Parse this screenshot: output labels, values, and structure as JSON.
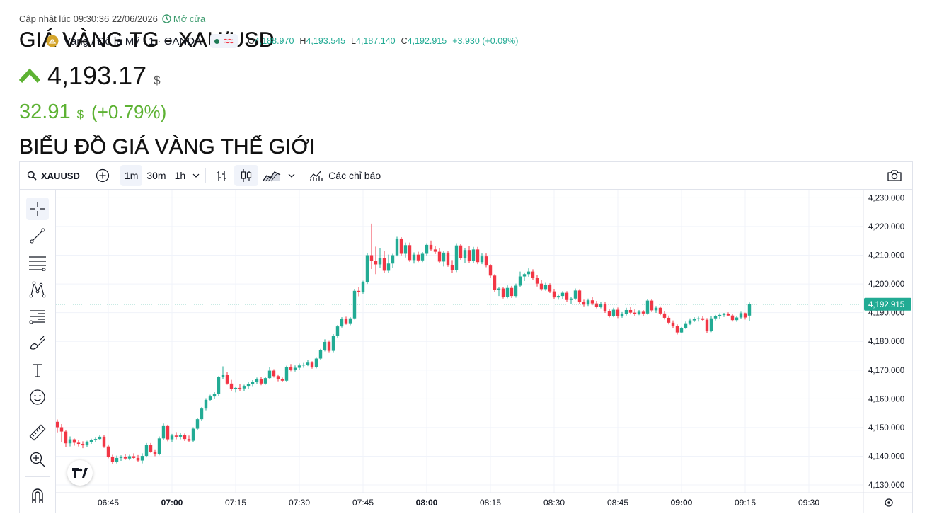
{
  "header": {
    "updated_text": "Cập nhật lúc 09:30:36 22/06/2026",
    "market_status": "Mở cửa",
    "title": "GIÁ VÀNG TG - XAU/USD",
    "price": "4,193.17",
    "price_unit": "$",
    "change": "32.91",
    "change_unit": "$",
    "change_pct": "(+0.79%)",
    "direction": "up",
    "up_color": "#5db233",
    "subtitle": "BIỂU ĐỒ GIÁ VÀNG THẾ GIỚI"
  },
  "toolbar": {
    "symbol": "XAUUSD",
    "intervals": [
      "1m",
      "30m",
      "1h"
    ],
    "active_interval": "1m",
    "indicators_label": "Các chỉ báo"
  },
  "legend": {
    "name": "Vàng / Đô la Mỹ · 1 · OANDA",
    "o_key": "O",
    "o_val": "4,188.970",
    "h_key": "H",
    "h_val": "4,193.545",
    "l_key": "L",
    "l_val": "4,187.140",
    "c_key": "C",
    "c_val": "4,192.915",
    "chg": "+3.930 (+0.09%)"
  },
  "left_tools": [
    "crosshair-icon",
    "trend-line-icon",
    "horizontal-lines-icon",
    "pattern-icon",
    "fib-icon",
    "brush-icon",
    "text-icon",
    "emoji-icon",
    "ruler-icon",
    "zoom-in-icon",
    "magnet-icon"
  ],
  "chart_data": {
    "type": "candlestick",
    "symbol": "XAUUSD",
    "last_price": 4192.915,
    "last_price_label": "4,192.915",
    "y_ticks": [
      "4,230.000",
      "4,220.000",
      "4,210.000",
      "4,200.000",
      "4,190.000",
      "4,180.000",
      "4,170.000",
      "4,160.000",
      "4,150.000",
      "4,140.000",
      "4,130.000"
    ],
    "y_tick_values": [
      4230,
      4220,
      4210,
      4200,
      4190,
      4180,
      4170,
      4160,
      4150,
      4140,
      4130
    ],
    "ylim": [
      4127.3,
      4232.8
    ],
    "x_ticks": [
      "06:45",
      "07:00",
      "07:15",
      "07:30",
      "07:45",
      "08:00",
      "08:15",
      "08:30",
      "08:45",
      "09:00",
      "09:15",
      "09:30"
    ],
    "x_tick_bold": [
      false,
      true,
      false,
      false,
      false,
      true,
      false,
      false,
      false,
      true,
      false,
      false
    ],
    "x_tick_minutes": [
      0,
      15,
      30,
      45,
      60,
      75,
      90,
      105,
      120,
      135,
      150,
      165
    ],
    "x_start_minute": -13,
    "up_color": "#22ab94",
    "down_color": "#f23645",
    "candles": [
      [
        4154.2,
        4155.2,
        4150.8,
        4152.0
      ],
      [
        4152.0,
        4152.8,
        4148.3,
        4150.1
      ],
      [
        4150.1,
        4151.2,
        4145.0,
        4148.6
      ],
      [
        4148.6,
        4149.1,
        4143.2,
        4144.5
      ],
      [
        4144.5,
        4146.9,
        4143.4,
        4145.9
      ],
      [
        4145.9,
        4146.2,
        4143.7,
        4144.7
      ],
      [
        4144.7,
        4145.8,
        4143.4,
        4144.3
      ],
      [
        4144.3,
        4145.2,
        4142.8,
        4143.8
      ],
      [
        4143.8,
        4145.4,
        4143.2,
        4144.9
      ],
      [
        4144.9,
        4146.1,
        4144.3,
        4145.6
      ],
      [
        4145.6,
        4146.7,
        4144.8,
        4146.0
      ],
      [
        4146.0,
        4147.4,
        4145.6,
        4146.8
      ],
      [
        4146.8,
        4147.3,
        4142.9,
        4143.4
      ],
      [
        4143.4,
        4144.1,
        4139.3,
        4139.8
      ],
      [
        4139.8,
        4140.5,
        4137.2,
        4138.1
      ],
      [
        4138.1,
        4140.2,
        4137.5,
        4139.4
      ],
      [
        4139.4,
        4140.3,
        4138.4,
        4139.7
      ],
      [
        4139.7,
        4140.6,
        4138.7,
        4139.2
      ],
      [
        4139.2,
        4140.5,
        4138.6,
        4140.0
      ],
      [
        4140.0,
        4141.0,
        4138.9,
        4139.4
      ],
      [
        4139.4,
        4140.4,
        4137.9,
        4138.5
      ],
      [
        4138.5,
        4141.0,
        4137.5,
        4140.1
      ],
      [
        4140.1,
        4144.6,
        4139.6,
        4143.9
      ],
      [
        4143.9,
        4144.6,
        4141.2,
        4141.6
      ],
      [
        4141.6,
        4142.4,
        4140.0,
        4140.8
      ],
      [
        4140.8,
        4146.9,
        4140.3,
        4146.2
      ],
      [
        4146.2,
        4151.4,
        4145.7,
        4150.5
      ],
      [
        4150.5,
        4151.0,
        4145.2,
        4145.9
      ],
      [
        4145.9,
        4147.8,
        4145.0,
        4147.2
      ],
      [
        4147.2,
        4148.4,
        4145.9,
        4146.8
      ],
      [
        4146.8,
        4148.0,
        4145.9,
        4147.3
      ],
      [
        4147.3,
        4147.9,
        4145.3,
        4146.0
      ],
      [
        4146.0,
        4147.2,
        4144.9,
        4145.4
      ],
      [
        4145.4,
        4150.1,
        4145.0,
        4149.6
      ],
      [
        4149.6,
        4153.4,
        4149.1,
        4152.9
      ],
      [
        4152.9,
        4157.1,
        4152.4,
        4156.6
      ],
      [
        4156.6,
        4160.2,
        4156.0,
        4159.6
      ],
      [
        4159.6,
        4161.4,
        4159.1,
        4160.8
      ],
      [
        4160.8,
        4162.3,
        4159.9,
        4161.6
      ],
      [
        4161.6,
        4167.9,
        4161.0,
        4167.5
      ],
      [
        4167.5,
        4171.3,
        4167.0,
        4168.4
      ],
      [
        4168.4,
        4169.4,
        4164.9,
        4165.3
      ],
      [
        4165.3,
        4166.6,
        4162.8,
        4163.4
      ],
      [
        4163.4,
        4164.3,
        4162.2,
        4163.8
      ],
      [
        4163.8,
        4165.1,
        4162.8,
        4163.6
      ],
      [
        4163.6,
        4164.9,
        4162.7,
        4164.5
      ],
      [
        4164.5,
        4165.8,
        4163.5,
        4165.2
      ],
      [
        4165.2,
        4166.5,
        4164.4,
        4165.8
      ],
      [
        4165.8,
        4167.4,
        4165.0,
        4166.9
      ],
      [
        4166.9,
        4167.6,
        4164.7,
        4165.3
      ],
      [
        4165.3,
        4167.7,
        4164.9,
        4167.2
      ],
      [
        4167.2,
        4171.0,
        4166.8,
        4169.8
      ],
      [
        4169.8,
        4170.3,
        4167.4,
        4167.9
      ],
      [
        4167.9,
        4168.5,
        4166.1,
        4166.8
      ],
      [
        4166.8,
        4167.4,
        4165.8,
        4166.3
      ],
      [
        4166.3,
        4171.5,
        4165.8,
        4171.0
      ],
      [
        4171.0,
        4172.1,
        4169.6,
        4170.2
      ],
      [
        4170.2,
        4171.6,
        4169.5,
        4170.8
      ],
      [
        4170.8,
        4172.3,
        4170.1,
        4171.6
      ],
      [
        4171.6,
        4172.5,
        4170.8,
        4171.9
      ],
      [
        4171.9,
        4173.6,
        4171.4,
        4172.6
      ],
      [
        4172.6,
        4173.1,
        4170.5,
        4171.0
      ],
      [
        4171.0,
        4174.5,
        4170.6,
        4174.0
      ],
      [
        4174.0,
        4177.4,
        4173.6,
        4176.9
      ],
      [
        4176.9,
        4180.7,
        4176.5,
        4179.8
      ],
      [
        4179.8,
        4180.4,
        4176.2,
        4176.7
      ],
      [
        4176.7,
        4182.5,
        4176.2,
        4181.8
      ],
      [
        4181.8,
        4185.7,
        4181.3,
        4185.2
      ],
      [
        4185.2,
        4188.4,
        4184.8,
        4187.9
      ],
      [
        4187.9,
        4188.6,
        4185.8,
        4186.3
      ],
      [
        4186.3,
        4188.4,
        4185.6,
        4188.0
      ],
      [
        4188.0,
        4198.3,
        4187.6,
        4197.6
      ],
      [
        4197.6,
        4199.0,
        4195.7,
        4197.2
      ],
      [
        4197.2,
        4201.1,
        4196.6,
        4200.5
      ],
      [
        4200.5,
        4210.8,
        4200.0,
        4210.0
      ],
      [
        4210.0,
        4221.0,
        4205.2,
        4208.0
      ],
      [
        4208.0,
        4213.0,
        4203.4,
        4206.8
      ],
      [
        4206.8,
        4212.4,
        4205.5,
        4209.1
      ],
      [
        4209.1,
        4211.4,
        4203.8,
        4204.6
      ],
      [
        4204.6,
        4210.2,
        4203.7,
        4207.1
      ],
      [
        4207.1,
        4210.5,
        4205.6,
        4210.0
      ],
      [
        4210.0,
        4216.4,
        4209.6,
        4215.8
      ],
      [
        4215.8,
        4216.3,
        4209.9,
        4210.5
      ],
      [
        4210.5,
        4214.4,
        4209.2,
        4213.5
      ],
      [
        4213.5,
        4214.4,
        4207.7,
        4208.3
      ],
      [
        4208.3,
        4211.0,
        4207.1,
        4210.2
      ],
      [
        4210.2,
        4211.2,
        4207.6,
        4208.2
      ],
      [
        4208.2,
        4211.1,
        4207.6,
        4210.5
      ],
      [
        4210.5,
        4214.2,
        4209.9,
        4213.6
      ],
      [
        4213.6,
        4215.1,
        4211.6,
        4212.0
      ],
      [
        4212.0,
        4213.2,
        4210.4,
        4211.2
      ],
      [
        4211.2,
        4212.5,
        4207.3,
        4207.8
      ],
      [
        4207.8,
        4211.5,
        4206.1,
        4210.9
      ],
      [
        4210.9,
        4211.6,
        4206.0,
        4206.6
      ],
      [
        4206.6,
        4208.3,
        4203.9,
        4204.8
      ],
      [
        4204.8,
        4214.2,
        4204.1,
        4213.4
      ],
      [
        4213.4,
        4213.9,
        4208.4,
        4209.0
      ],
      [
        4209.0,
        4212.6,
        4207.4,
        4211.8
      ],
      [
        4211.8,
        4213.1,
        4207.2,
        4207.9
      ],
      [
        4207.9,
        4212.9,
        4207.2,
        4212.0
      ],
      [
        4212.0,
        4212.9,
        4206.9,
        4207.6
      ],
      [
        4207.6,
        4210.6,
        4206.9,
        4209.6
      ],
      [
        4209.6,
        4210.6,
        4205.8,
        4206.4
      ],
      [
        4206.4,
        4206.9,
        4202.2,
        4202.9
      ],
      [
        4202.9,
        4203.4,
        4197.1,
        4197.9
      ],
      [
        4197.9,
        4199.0,
        4195.8,
        4198.4
      ],
      [
        4198.4,
        4199.0,
        4194.9,
        4195.5
      ],
      [
        4195.5,
        4199.5,
        4195.0,
        4198.6
      ],
      [
        4198.6,
        4199.3,
        4195.1,
        4195.8
      ],
      [
        4195.8,
        4200.1,
        4195.2,
        4199.4
      ],
      [
        4199.4,
        4204.3,
        4199.0,
        4202.6
      ],
      [
        4202.6,
        4204.0,
        4201.0,
        4203.4
      ],
      [
        4203.4,
        4205.4,
        4202.5,
        4204.3
      ],
      [
        4204.3,
        4205.1,
        4201.4,
        4202.0
      ],
      [
        4202.0,
        4203.1,
        4199.1,
        4200.1
      ],
      [
        4200.1,
        4201.4,
        4197.6,
        4198.2
      ],
      [
        4198.2,
        4200.4,
        4197.6,
        4199.6
      ],
      [
        4199.6,
        4200.2,
        4196.8,
        4197.4
      ],
      [
        4197.4,
        4198.3,
        4194.7,
        4195.3
      ],
      [
        4195.3,
        4196.4,
        4194.5,
        4195.8
      ],
      [
        4195.8,
        4197.5,
        4194.8,
        4196.9
      ],
      [
        4196.9,
        4197.5,
        4193.8,
        4194.4
      ],
      [
        4194.4,
        4195.5,
        4193.1,
        4194.9
      ],
      [
        4194.9,
        4198.4,
        4194.4,
        4197.7
      ],
      [
        4197.7,
        4198.2,
        4193.0,
        4193.6
      ],
      [
        4193.6,
        4194.5,
        4192.2,
        4192.8
      ],
      [
        4192.8,
        4194.9,
        4192.3,
        4194.3
      ],
      [
        4194.3,
        4195.4,
        4192.6,
        4193.2
      ],
      [
        4193.2,
        4194.1,
        4191.5,
        4192.0
      ],
      [
        4192.0,
        4193.8,
        4191.5,
        4193.0
      ],
      [
        4193.0,
        4193.6,
        4189.9,
        4190.4
      ],
      [
        4190.4,
        4191.2,
        4188.3,
        4188.9
      ],
      [
        4188.9,
        4191.7,
        4188.4,
        4191.0
      ],
      [
        4191.0,
        4191.8,
        4188.1,
        4188.7
      ],
      [
        4188.7,
        4190.2,
        4188.2,
        4189.6
      ],
      [
        4189.6,
        4191.7,
        4189.0,
        4190.9
      ],
      [
        4190.9,
        4192.1,
        4189.4,
        4190.0
      ],
      [
        4190.0,
        4191.1,
        4188.7,
        4189.6
      ],
      [
        4189.6,
        4190.9,
        4189.1,
        4190.3
      ],
      [
        4190.3,
        4190.9,
        4188.8,
        4189.7
      ],
      [
        4189.7,
        4194.7,
        4189.3,
        4194.2
      ],
      [
        4194.2,
        4194.8,
        4190.2,
        4190.8
      ],
      [
        4190.8,
        4192.3,
        4189.9,
        4191.7
      ],
      [
        4191.7,
        4192.2,
        4189.1,
        4189.7
      ],
      [
        4189.7,
        4190.4,
        4187.6,
        4188.2
      ],
      [
        4188.2,
        4189.0,
        4185.9,
        4186.5
      ],
      [
        4186.5,
        4187.3,
        4184.7,
        4185.3
      ],
      [
        4185.3,
        4185.9,
        4182.4,
        4183.1
      ],
      [
        4183.1,
        4185.0,
        4182.8,
        4184.6
      ],
      [
        4184.6,
        4186.9,
        4184.3,
        4186.3
      ],
      [
        4186.3,
        4188.0,
        4185.7,
        4187.3
      ],
      [
        4187.3,
        4188.4,
        4186.7,
        4187.7
      ],
      [
        4187.7,
        4188.6,
        4186.9,
        4188.0
      ],
      [
        4188.0,
        4188.8,
        4187.0,
        4187.5
      ],
      [
        4187.5,
        4188.1,
        4182.9,
        4183.6
      ],
      [
        4183.6,
        4188.7,
        4183.2,
        4188.0
      ],
      [
        4188.0,
        4189.2,
        4187.3,
        4188.7
      ],
      [
        4188.7,
        4189.8,
        4187.8,
        4189.2
      ],
      [
        4189.2,
        4189.9,
        4188.5,
        4189.6
      ],
      [
        4189.6,
        4190.1,
        4188.7,
        4189.0
      ],
      [
        4189.0,
        4189.6,
        4186.9,
        4187.4
      ],
      [
        4187.4,
        4188.7,
        4186.8,
        4188.3
      ],
      [
        4188.3,
        4190.3,
        4187.9,
        4189.8
      ],
      [
        4189.8,
        4190.0,
        4187.6,
        4188.3
      ],
      [
        4188.97,
        4193.545,
        4187.14,
        4192.915
      ]
    ]
  }
}
